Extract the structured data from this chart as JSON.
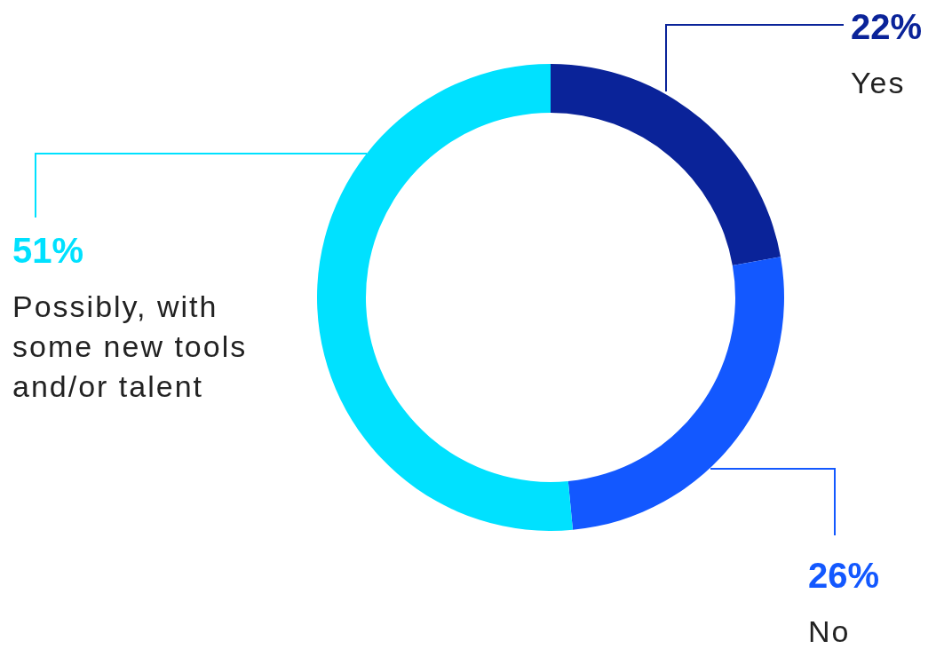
{
  "chart_data": {
    "type": "donut",
    "categories": [
      "Yes",
      "No",
      "Possibly, with some new tools and/or talent"
    ],
    "values": [
      22,
      26,
      51
    ],
    "colors": [
      "#0a2399",
      "#1358ff",
      "#00e1ff"
    ],
    "value_labels": [
      "22%",
      "26%",
      "51%"
    ]
  }
}
